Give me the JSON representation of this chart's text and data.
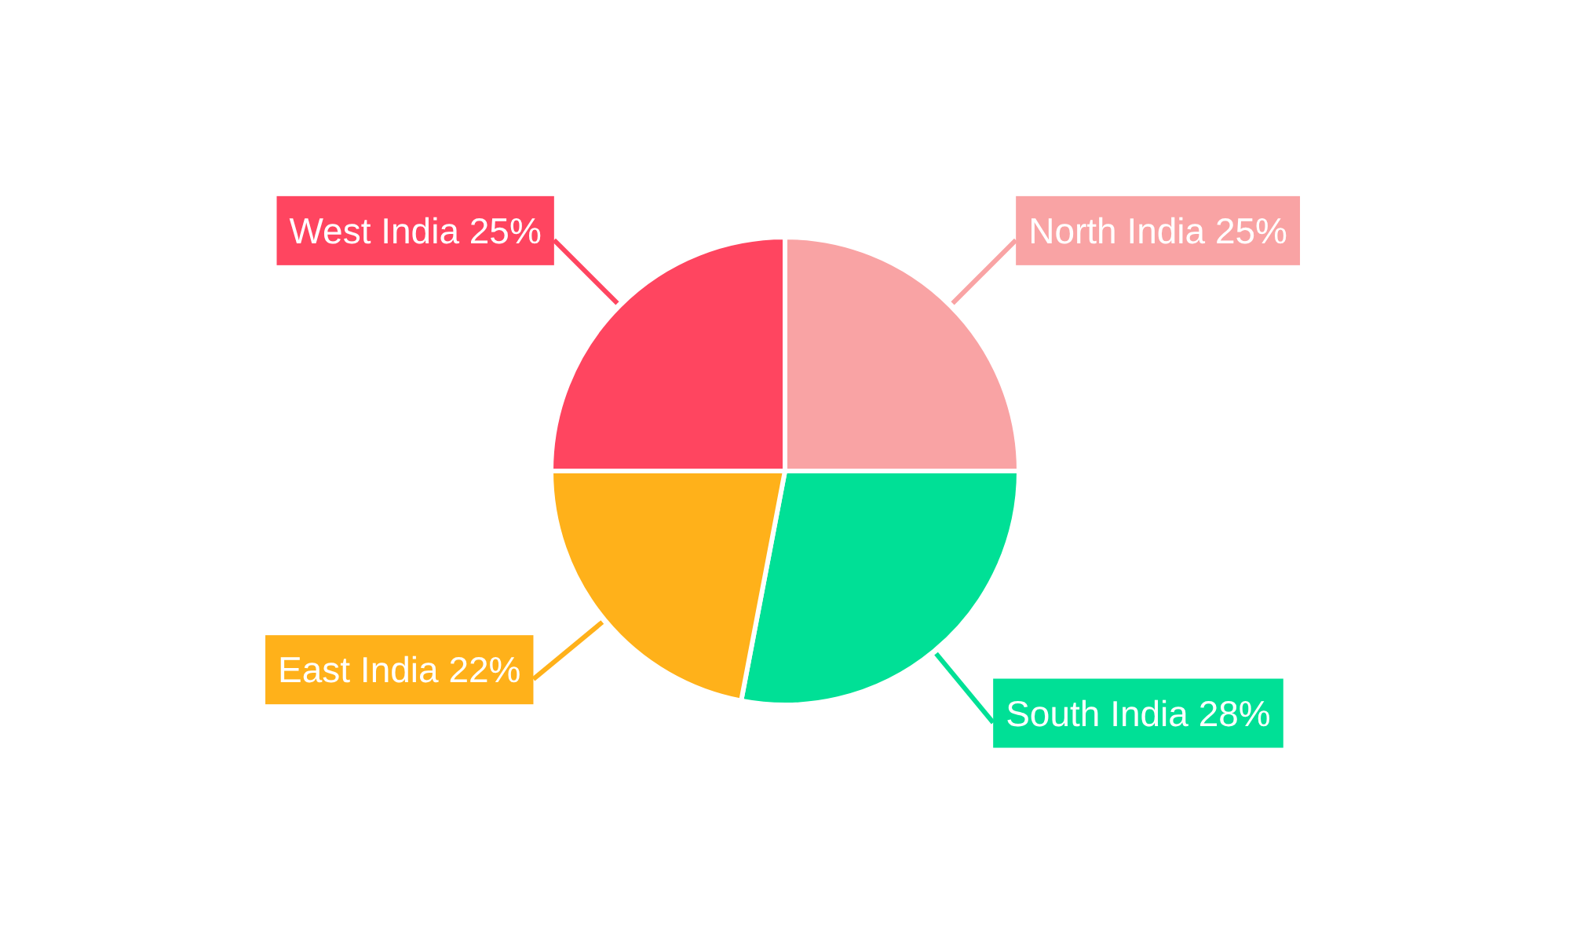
{
  "chart_data": {
    "type": "pie",
    "categories": [
      "North India",
      "South India",
      "East India",
      "West India"
    ],
    "values": [
      25,
      28,
      22,
      25
    ],
    "value_labels": [
      "25%",
      "28%",
      "22%",
      "25%"
    ],
    "colors": [
      "#f9a3a4",
      "#00e096",
      "#ffb11a",
      "#ff4560"
    ],
    "legend": false
  }
}
